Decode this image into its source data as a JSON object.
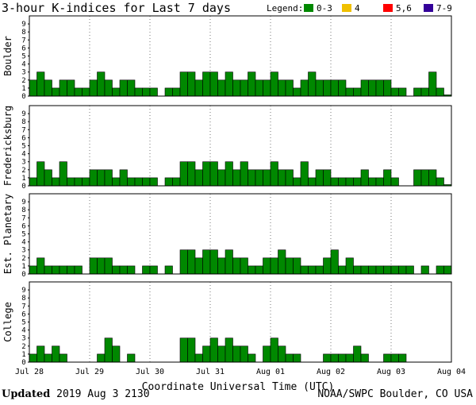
{
  "chart_data": {
    "type": "bar",
    "title": "3-hour K-indices for Last 7 days",
    "legend": {
      "label": "Legend:",
      "placement": "top-right",
      "items": [
        {
          "label": "0-3",
          "color": "#008800"
        },
        {
          "label": "4",
          "color": "#f0c000"
        },
        {
          "label": "5,6",
          "color": "#ff0000"
        },
        {
          "label": "7-9",
          "color": "#330099"
        }
      ]
    },
    "xlabel": "Coordinate Universal Time (UTC)",
    "x_ticks": [
      "Jul 28",
      "Jul 29",
      "Jul 30",
      "Jul 31",
      "Aug 01",
      "Aug 02",
      "Aug 03",
      "Aug 04"
    ],
    "ylim": [
      0,
      9
    ],
    "y_ticks": [
      "0",
      "1",
      "2",
      "3",
      "4",
      "5",
      "6",
      "7",
      "8",
      "9"
    ],
    "grid": "dotted vertical day lines",
    "bars_per_day": 8,
    "series": [
      {
        "name": "Boulder",
        "values": [
          2,
          3,
          2,
          1,
          2,
          2,
          1,
          1,
          2,
          3,
          2,
          1,
          2,
          2,
          1,
          1,
          1,
          0,
          1,
          1,
          3,
          3,
          2,
          3,
          3,
          2,
          3,
          2,
          2,
          3,
          2,
          2,
          3,
          2,
          2,
          1,
          2,
          3,
          2,
          2,
          2,
          2,
          1,
          1,
          2,
          2,
          2,
          2,
          1,
          1,
          0,
          1,
          1,
          3,
          1,
          0.15
        ]
      },
      {
        "name": "Fredericksburg",
        "values": [
          1,
          3,
          2,
          1,
          3,
          1,
          1,
          1,
          2,
          2,
          2,
          1,
          2,
          1,
          1,
          1,
          1,
          0,
          1,
          1,
          3,
          3,
          2,
          3,
          3,
          2,
          3,
          2,
          3,
          2,
          2,
          2,
          3,
          2,
          2,
          1,
          3,
          1,
          2,
          2,
          1,
          1,
          1,
          1,
          2,
          1,
          1,
          2,
          1,
          0,
          0,
          2,
          2,
          2,
          1,
          0.15
        ]
      },
      {
        "name": "Est. Planetary",
        "values": [
          1,
          2,
          1,
          1,
          1,
          1,
          1,
          0,
          2,
          2,
          2,
          1,
          1,
          1,
          0,
          1,
          1,
          0,
          1,
          0,
          3,
          3,
          2,
          3,
          3,
          2,
          3,
          2,
          2,
          1,
          1,
          2,
          2,
          3,
          2,
          2,
          1,
          1,
          1,
          2,
          3,
          1,
          2,
          1,
          1,
          1,
          1,
          1,
          1,
          1,
          1,
          0,
          1,
          0,
          1,
          1
        ]
      },
      {
        "name": "College",
        "values": [
          1,
          2,
          1,
          2,
          1,
          0,
          0,
          0,
          0,
          1,
          3,
          2,
          0,
          1,
          0,
          0,
          0,
          0,
          0,
          0,
          3,
          3,
          1,
          2,
          3,
          2,
          3,
          2,
          2,
          1,
          0,
          2,
          3,
          2,
          1,
          1,
          0,
          0,
          0,
          1,
          1,
          1,
          1,
          2,
          1,
          0,
          0,
          1,
          1,
          1,
          0,
          0,
          0,
          0,
          0,
          0
        ]
      }
    ]
  },
  "footer": {
    "updated_label": "Updated",
    "updated_value": " 2019 Aug  3 2130",
    "source": "NOAA/SWPC Boulder, CO USA"
  }
}
